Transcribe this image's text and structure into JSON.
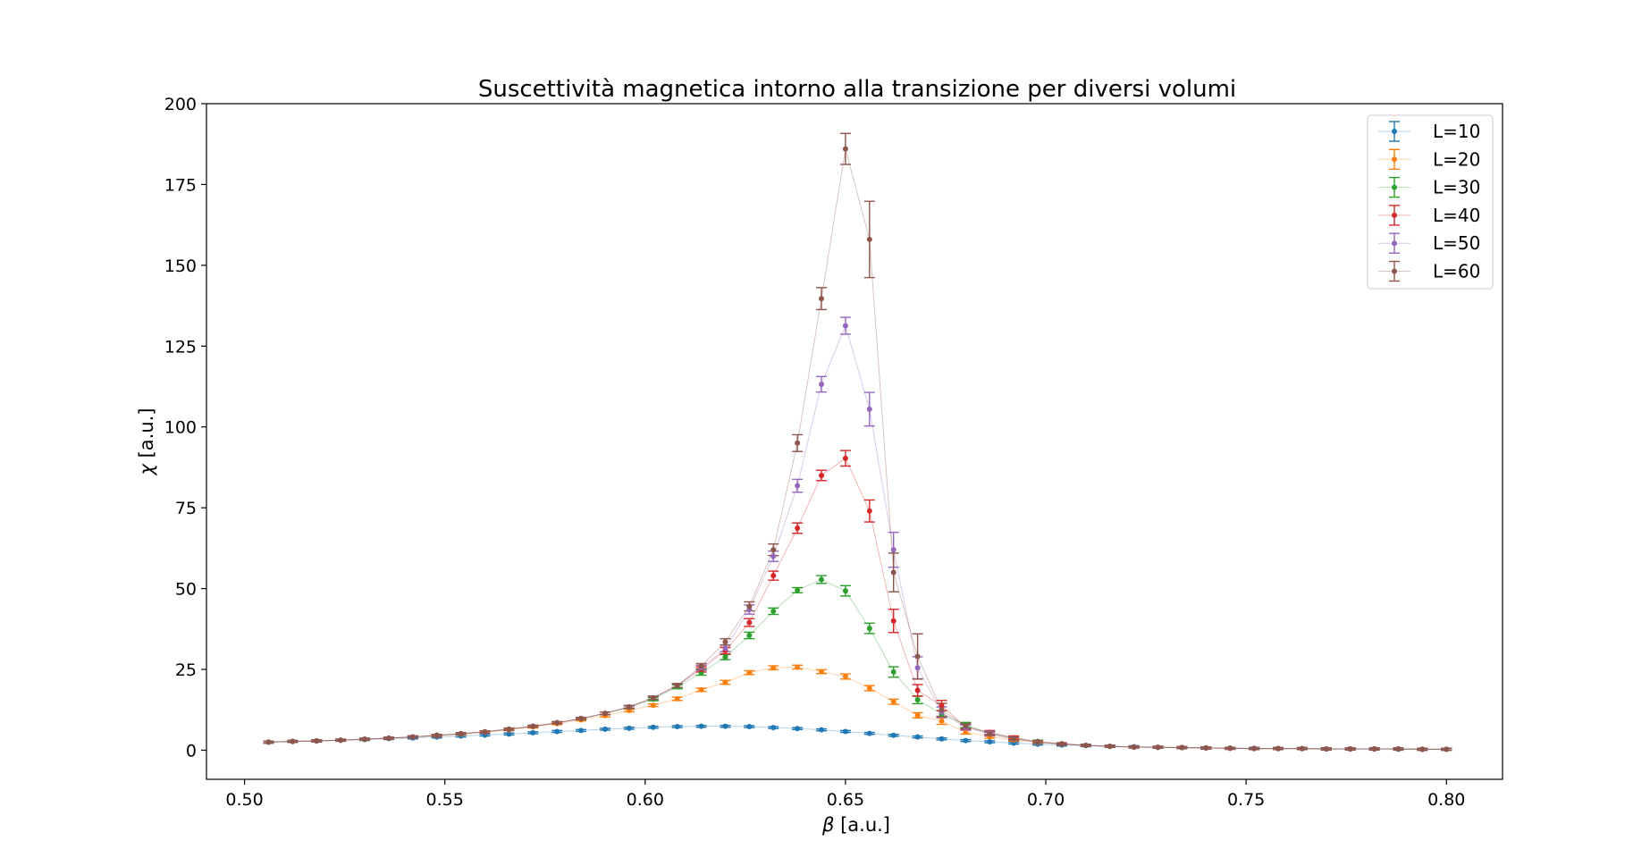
{
  "chart_data": {
    "type": "line",
    "title": "Suscettività magnetica intorno alla transizione per diversi volumi",
    "xlabel_symbol": "β",
    "xlabel_unit": " [a.u.]",
    "ylabel_symbol": "χ",
    "ylabel_unit": " [a.u.]",
    "xlim": [
      0.4905,
      0.814
    ],
    "ylim": [
      -9,
      200
    ],
    "xticks": [
      0.5,
      0.55,
      0.6,
      0.65,
      0.7,
      0.75,
      0.8
    ],
    "xtick_labels": [
      "0.50",
      "0.55",
      "0.60",
      "0.65",
      "0.70",
      "0.75",
      "0.80"
    ],
    "yticks": [
      0,
      25,
      50,
      75,
      100,
      125,
      150,
      175,
      200
    ],
    "ytick_labels": [
      "0",
      "25",
      "50",
      "75",
      "100",
      "125",
      "150",
      "175",
      "200"
    ],
    "grid": false,
    "legend_position": "top-right",
    "x": [
      0.506,
      0.512,
      0.518,
      0.524,
      0.53,
      0.536,
      0.542,
      0.548,
      0.554,
      0.56,
      0.566,
      0.572,
      0.578,
      0.584,
      0.59,
      0.596,
      0.602,
      0.608,
      0.614,
      0.62,
      0.626,
      0.632,
      0.638,
      0.644,
      0.65,
      0.656,
      0.662,
      0.668,
      0.674,
      0.68,
      0.686,
      0.692,
      0.698,
      0.704,
      0.71,
      0.716,
      0.722,
      0.728,
      0.734,
      0.74,
      0.746,
      0.752,
      0.758,
      0.764,
      0.77,
      0.776,
      0.782,
      0.788,
      0.794,
      0.8
    ],
    "series": [
      {
        "name": "L=10",
        "color": "#1f77b4",
        "values": [
          2.5,
          2.7,
          2.9,
          3.1,
          3.3,
          3.6,
          3.8,
          4.1,
          4.4,
          4.7,
          5.0,
          5.4,
          5.8,
          6.1,
          6.5,
          6.8,
          7.1,
          7.3,
          7.4,
          7.4,
          7.3,
          7.0,
          6.7,
          6.3,
          5.8,
          5.2,
          4.6,
          4.1,
          3.5,
          3.0,
          2.6,
          2.2,
          1.9,
          1.6,
          1.4,
          1.2,
          1.1,
          0.9,
          0.8,
          0.7,
          0.6,
          0.6,
          0.5,
          0.5,
          0.4,
          0.4,
          0.4,
          0.3,
          0.3,
          0.3
        ],
        "errors": [
          0.3,
          0.3,
          0.3,
          0.3,
          0.3,
          0.3,
          0.3,
          0.3,
          0.3,
          0.3,
          0.3,
          0.3,
          0.3,
          0.3,
          0.3,
          0.3,
          0.3,
          0.3,
          0.3,
          0.3,
          0.3,
          0.3,
          0.3,
          0.3,
          0.3,
          0.3,
          0.3,
          0.3,
          0.3,
          0.3,
          0.3,
          0.3,
          0.3,
          0.3,
          0.3,
          0.3,
          0.3,
          0.3,
          0.3,
          0.3,
          0.3,
          0.3,
          0.3,
          0.3,
          0.3,
          0.3,
          0.3,
          0.3,
          0.3,
          0.3
        ]
      },
      {
        "name": "L=20",
        "color": "#ff7f0e",
        "values": [
          2.5,
          2.7,
          2.9,
          3.1,
          3.4,
          3.7,
          4.1,
          4.5,
          5.0,
          5.6,
          6.3,
          7.2,
          8.2,
          9.4,
          10.7,
          12.3,
          13.9,
          15.9,
          18.7,
          21.0,
          24.0,
          25.5,
          25.7,
          24.3,
          22.8,
          19.2,
          15.0,
          10.8,
          9.0,
          5.6,
          4.2,
          3.2,
          2.4,
          1.9,
          1.5,
          1.2,
          1.0,
          0.9,
          0.8,
          0.7,
          0.6,
          0.5,
          0.5,
          0.5,
          0.4,
          0.4,
          0.4,
          0.4,
          0.3,
          0.3
        ],
        "errors": [
          0.3,
          0.3,
          0.3,
          0.3,
          0.3,
          0.3,
          0.3,
          0.3,
          0.3,
          0.3,
          0.3,
          0.3,
          0.3,
          0.3,
          0.4,
          0.4,
          0.4,
          0.5,
          0.5,
          0.6,
          0.6,
          0.6,
          0.6,
          0.6,
          0.8,
          0.8,
          0.8,
          0.8,
          1.0,
          0.6,
          0.5,
          0.4,
          0.3,
          0.3,
          0.3,
          0.3,
          0.3,
          0.3,
          0.3,
          0.3,
          0.3,
          0.3,
          0.3,
          0.3,
          0.3,
          0.3,
          0.3,
          0.3,
          0.3,
          0.3
        ]
      },
      {
        "name": "L=30",
        "color": "#2ca02c",
        "values": [
          2.5,
          2.7,
          2.9,
          3.1,
          3.4,
          3.7,
          4.1,
          4.6,
          5.1,
          5.7,
          6.5,
          7.4,
          8.5,
          9.8,
          11.4,
          13.3,
          15.8,
          19.6,
          24.0,
          28.8,
          35.5,
          43.0,
          49.5,
          52.8,
          49.3,
          37.7,
          24.2,
          15.6,
          11.2,
          7.8,
          5.3,
          3.8,
          2.7,
          2.0,
          1.5,
          1.2,
          1.0,
          0.9,
          0.8,
          0.7,
          0.6,
          0.5,
          0.5,
          0.5,
          0.4,
          0.4,
          0.4,
          0.4,
          0.3,
          0.3
        ],
        "errors": [
          0.3,
          0.3,
          0.3,
          0.3,
          0.3,
          0.3,
          0.3,
          0.3,
          0.3,
          0.3,
          0.3,
          0.3,
          0.3,
          0.3,
          0.4,
          0.4,
          0.5,
          0.6,
          0.8,
          0.8,
          1.0,
          1.0,
          0.8,
          1.2,
          1.6,
          1.6,
          1.6,
          1.2,
          1.0,
          0.8,
          0.6,
          0.5,
          0.4,
          0.3,
          0.3,
          0.3,
          0.3,
          0.3,
          0.3,
          0.3,
          0.3,
          0.3,
          0.3,
          0.3,
          0.3,
          0.3,
          0.3,
          0.3,
          0.3,
          0.3
        ]
      },
      {
        "name": "L=40",
        "color": "#d62728",
        "values": [
          2.5,
          2.7,
          2.9,
          3.1,
          3.4,
          3.7,
          4.1,
          4.6,
          5.1,
          5.7,
          6.5,
          7.4,
          8.5,
          9.8,
          11.4,
          13.4,
          16.2,
          20.0,
          25.0,
          30.8,
          39.5,
          54.0,
          68.7,
          85.0,
          90.3,
          74.0,
          40.0,
          18.5,
          13.8,
          7.2,
          5.5,
          3.9,
          2.6,
          2.0,
          1.5,
          1.2,
          1.0,
          0.9,
          0.8,
          0.7,
          0.6,
          0.5,
          0.5,
          0.5,
          0.4,
          0.4,
          0.4,
          0.4,
          0.3,
          0.3
        ],
        "errors": [
          0.3,
          0.3,
          0.3,
          0.3,
          0.3,
          0.3,
          0.3,
          0.3,
          0.3,
          0.3,
          0.3,
          0.3,
          0.3,
          0.3,
          0.4,
          0.4,
          0.5,
          0.6,
          0.8,
          1.0,
          1.2,
          1.4,
          1.6,
          1.6,
          2.4,
          3.4,
          3.6,
          1.8,
          1.6,
          0.8,
          0.6,
          0.5,
          0.4,
          0.3,
          0.3,
          0.3,
          0.3,
          0.3,
          0.3,
          0.3,
          0.3,
          0.3,
          0.3,
          0.3,
          0.3,
          0.3,
          0.3,
          0.3,
          0.3,
          0.3
        ]
      },
      {
        "name": "L=50",
        "color": "#9467bd",
        "values": [
          2.5,
          2.7,
          2.9,
          3.1,
          3.4,
          3.7,
          4.1,
          4.6,
          5.1,
          5.7,
          6.5,
          7.4,
          8.5,
          9.8,
          11.4,
          13.4,
          16.2,
          20.0,
          25.5,
          31.5,
          43.5,
          60.0,
          81.8,
          113.2,
          131.3,
          105.5,
          62.0,
          25.5,
          11.8,
          7.0,
          5.3,
          3.6,
          2.5,
          1.9,
          1.5,
          1.2,
          1.0,
          0.9,
          0.8,
          0.7,
          0.6,
          0.5,
          0.5,
          0.5,
          0.4,
          0.4,
          0.4,
          0.4,
          0.3,
          0.3
        ],
        "errors": [
          0.3,
          0.3,
          0.3,
          0.3,
          0.3,
          0.3,
          0.3,
          0.3,
          0.3,
          0.3,
          0.3,
          0.3,
          0.3,
          0.3,
          0.4,
          0.4,
          0.5,
          0.6,
          0.8,
          1.0,
          1.4,
          1.6,
          2.0,
          2.4,
          2.6,
          5.2,
          5.4,
          3.4,
          1.6,
          0.8,
          0.6,
          0.5,
          0.4,
          0.3,
          0.3,
          0.3,
          0.3,
          0.3,
          0.3,
          0.3,
          0.3,
          0.3,
          0.3,
          0.3,
          0.3,
          0.3,
          0.3,
          0.3,
          0.3,
          0.3
        ]
      },
      {
        "name": "L=60",
        "color": "#8c564b",
        "values": [
          2.5,
          2.7,
          2.9,
          3.1,
          3.4,
          3.7,
          4.1,
          4.6,
          5.1,
          5.7,
          6.5,
          7.4,
          8.5,
          9.8,
          11.4,
          13.4,
          16.2,
          20.0,
          26.0,
          33.5,
          44.5,
          62.0,
          95.0,
          139.7,
          186.0,
          158.0,
          55.0,
          29.0,
          12.5,
          7.5,
          5.0,
          3.5,
          2.5,
          1.9,
          1.5,
          1.2,
          1.0,
          0.9,
          0.8,
          0.7,
          0.6,
          0.5,
          0.5,
          0.5,
          0.4,
          0.4,
          0.4,
          0.4,
          0.3,
          0.3
        ],
        "errors": [
          0.3,
          0.3,
          0.3,
          0.3,
          0.3,
          0.3,
          0.3,
          0.3,
          0.3,
          0.3,
          0.3,
          0.3,
          0.3,
          0.3,
          0.4,
          0.4,
          0.5,
          0.6,
          0.8,
          1.0,
          1.4,
          1.8,
          2.6,
          3.4,
          4.8,
          11.8,
          6.0,
          7.0,
          2.0,
          0.8,
          0.6,
          0.5,
          0.4,
          0.3,
          0.3,
          0.3,
          0.3,
          0.3,
          0.3,
          0.3,
          0.3,
          0.3,
          0.3,
          0.3,
          0.3,
          0.3,
          0.3,
          0.3,
          0.3,
          0.3
        ]
      }
    ]
  }
}
